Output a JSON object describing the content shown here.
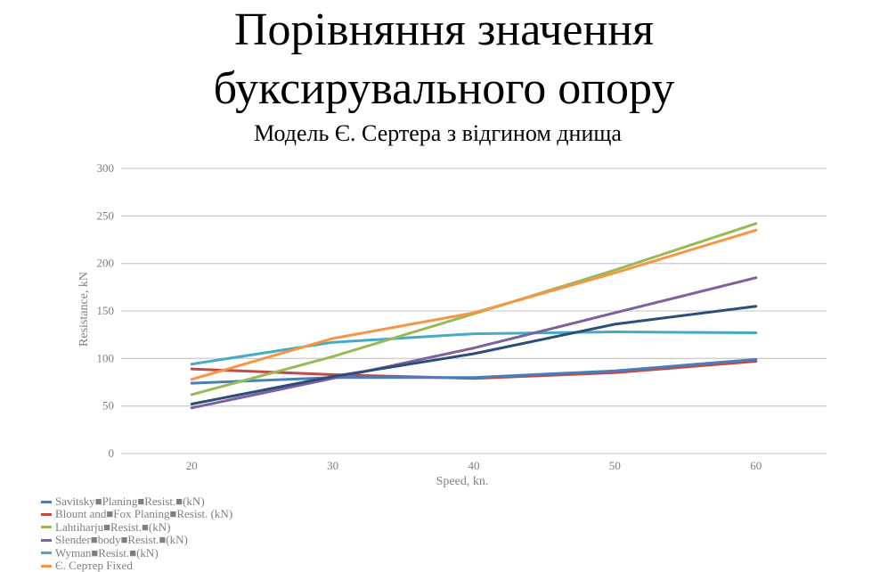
{
  "header": {
    "title_line1": "Порівняння значення",
    "title_line2": "буксирувального опору",
    "subtitle": "Модель Є. Сертера з відгином днища"
  },
  "chart_data": {
    "type": "line",
    "title": "Порівняння значення буксирувального опору",
    "subtitle": "Модель Є. Сертера з відгином днища",
    "xlabel": "Speed, kn.",
    "ylabel": "Resistance, kN",
    "x": [
      20,
      30,
      40,
      50,
      60
    ],
    "x_ticks": [
      "20",
      "30",
      "40",
      "50",
      "60"
    ],
    "y_ticks": [
      "0",
      "50",
      "100",
      "150",
      "200",
      "250",
      "300"
    ],
    "ylim": [
      0,
      300
    ],
    "grid": "horizontal",
    "legend_position": "bottom-left",
    "series": [
      {
        "name": "Savitsky\u0000Planing\u0000Resist.\u0000(kN)",
        "label": "Savitsky■Planing■Resist.■(kN)",
        "color": "#4a7ebb",
        "values": [
          74,
          80,
          80,
          87,
          99
        ]
      },
      {
        "name": "Blount and Fox Planing Resist. (kN)",
        "label": "Blount and■Fox Planing■Resist. (kN)",
        "color": "#be4b48",
        "values": [
          89,
          83,
          79,
          85,
          97
        ]
      },
      {
        "name": "Lahtiharju Resist. (kN)",
        "label": "Lahtiharju■Resist.■(kN)",
        "color": "#98b954",
        "values": [
          62,
          102,
          147,
          193,
          242
        ]
      },
      {
        "name": "Slender body Resist. (kN)",
        "label": "Slender■body■Resist.■(kN)",
        "color": "#7d60a0",
        "values": [
          48,
          79,
          111,
          148,
          185
        ]
      },
      {
        "name": "Wyman Resist. (kN)",
        "label": "Wyman■Resist.■(kN)",
        "color": "#46aac5",
        "values": [
          94,
          117,
          126,
          128,
          127
        ]
      },
      {
        "name": "Є. Сертер Fixed",
        "label": "Є. Сертер Fixed",
        "color": "#f69545",
        "values": [
          78,
          121,
          148,
          190,
          235
        ]
      },
      {
        "name": "",
        "label": "",
        "color": "#2c4d75",
        "values": [
          52,
          81,
          105,
          136,
          155
        ]
      }
    ]
  }
}
